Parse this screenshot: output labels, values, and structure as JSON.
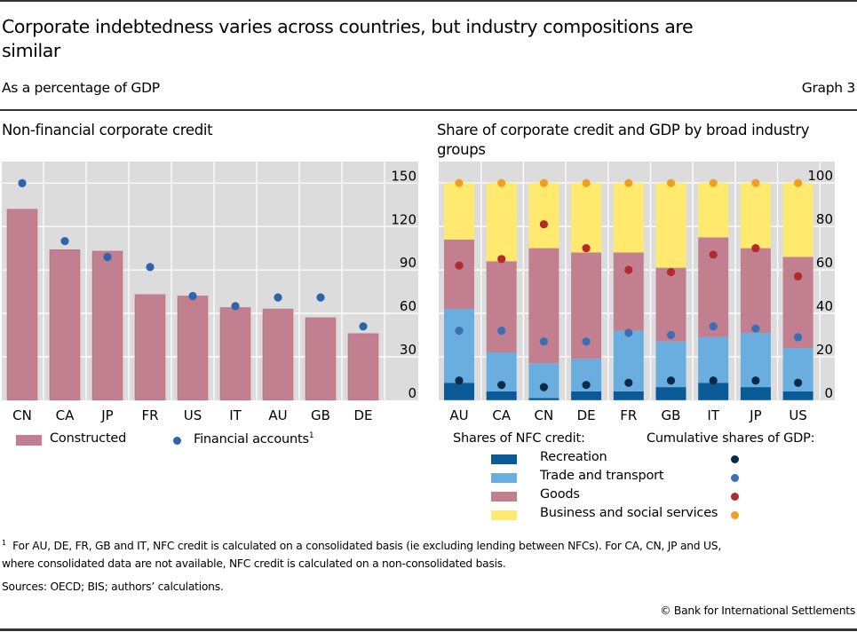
{
  "header": {
    "title": "Corporate indebtedness varies across countries, but industry compositions are similar",
    "subtitle": "As a percentage of GDP",
    "graph_number": "Graph 3"
  },
  "colors": {
    "bar_pink": "#c27f8f",
    "dot_blue": "#2e63ad",
    "recreation": "#0a5a98",
    "trade": "#6aaee0",
    "goods": "#c27f8f",
    "business": "#ffe96e",
    "dot_navy": "#0a2a4a",
    "dot_mid_blue": "#3a6fb7",
    "dot_red": "#b22a2e",
    "dot_orange": "#f0a021",
    "plot_bg": "#dcdcdc"
  },
  "chart_data": [
    {
      "type": "bar",
      "title": "Non-financial corporate credit",
      "categories": [
        "CN",
        "CA",
        "JP",
        "FR",
        "US",
        "IT",
        "AU",
        "GB",
        "DE"
      ],
      "series": [
        {
          "name": "Constructed",
          "kind": "bar",
          "values": [
            132,
            104,
            103,
            73,
            72,
            64,
            63,
            57,
            46
          ]
        },
        {
          "name": "Financial accounts",
          "superscript": "1",
          "kind": "dot",
          "values": [
            150,
            110,
            99,
            92,
            72,
            65,
            71,
            71,
            51
          ]
        }
      ],
      "ylim": [
        0,
        150
      ],
      "yticks": [
        "0",
        "30",
        "60",
        "90",
        "120",
        "150"
      ],
      "ytick_values": [
        0,
        30,
        60,
        90,
        120,
        150
      ],
      "y_axis_side": "right",
      "grid": true,
      "legend_position": "bottom"
    },
    {
      "type": "bar",
      "stacked": true,
      "title": "Share of corporate credit and GDP by broad industry groups",
      "categories": [
        "AU",
        "CA",
        "CN",
        "DE",
        "FR",
        "GB",
        "IT",
        "JP",
        "US"
      ],
      "stack_legend_title": "Shares of NFC credit:",
      "dot_legend_title": "Cumulative shares of GDP:",
      "cumulative_credit_shares": {
        "Recreation": [
          8,
          4,
          1,
          4,
          4,
          6,
          8,
          6,
          4
        ],
        "Trade and transport": [
          42,
          22,
          17,
          19,
          32,
          27,
          29,
          31,
          24
        ],
        "Goods": [
          74,
          64,
          70,
          68,
          68,
          61,
          75,
          70,
          66
        ],
        "Business and social services": [
          100,
          100,
          100,
          100,
          100,
          100,
          100,
          100,
          100
        ]
      },
      "cumulative_gdp_shares": {
        "Recreation": [
          9,
          7,
          6,
          7,
          8,
          9,
          9,
          9,
          8
        ],
        "Trade and transport": [
          32,
          32,
          27,
          27,
          31,
          30,
          34,
          33,
          29
        ],
        "Goods": [
          62,
          65,
          81,
          70,
          60,
          59,
          67,
          70,
          57
        ],
        "Business and social services": [
          100,
          100,
          100,
          100,
          100,
          100,
          100,
          100,
          100
        ]
      },
      "series_names": [
        "Recreation",
        "Trade and transport",
        "Goods",
        "Business and social services"
      ],
      "ylim": [
        0,
        100
      ],
      "yticks": [
        "0",
        "20",
        "40",
        "60",
        "80",
        "100"
      ],
      "ytick_values": [
        0,
        20,
        40,
        60,
        80,
        100
      ],
      "y_axis_side": "right",
      "grid": true,
      "legend_position": "bottom"
    }
  ],
  "footer": {
    "footnote_marker": "1",
    "footnote_line1": "For AU, DE, FR, GB and IT, NFC credit is calculated on a consolidated basis (ie excluding lending between NFCs). For CA, CN, JP and US,",
    "footnote_line2": "where consolidated data are not available, NFC credit is calculated on a non-consolidated basis.",
    "sources": "Sources: OECD; BIS; authors’ calculations.",
    "copyright": "© Bank for International Settlements"
  }
}
